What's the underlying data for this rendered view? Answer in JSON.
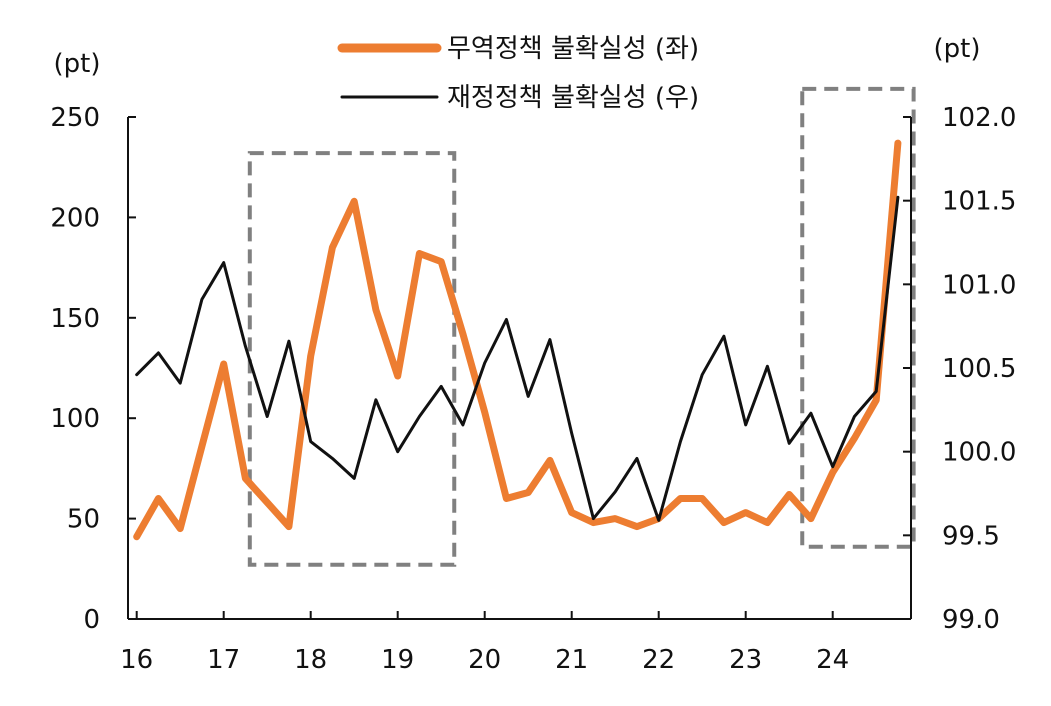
{
  "chart_data": {
    "type": "line",
    "left_axis": {
      "unit": "(pt)",
      "ylim": [
        0,
        250
      ],
      "ticks": [
        0,
        50,
        100,
        150,
        200,
        250
      ]
    },
    "right_axis": {
      "unit": "(pt)",
      "ylim": [
        99.0,
        102.0
      ],
      "ticks": [
        "99.0",
        "99.5",
        "100.0",
        "100.5",
        "101.0",
        "101.5",
        "102.0"
      ]
    },
    "x_tick_labels": [
      "16",
      "17",
      "18",
      "19",
      "20",
      "21",
      "22",
      "23",
      "24"
    ],
    "x_ticks": [
      2016,
      2017,
      2018,
      2019,
      2020,
      2021,
      2022,
      2023,
      2024
    ],
    "xlim": [
      2015.9,
      2024.9
    ],
    "series": [
      {
        "name": "무역정책 불확실성 (좌)",
        "axis": "left",
        "color": "#ED7D31",
        "x": [
          2016.0,
          2016.25,
          2016.5,
          2016.75,
          2017.0,
          2017.25,
          2017.5,
          2017.75,
          2018.0,
          2018.25,
          2018.5,
          2018.75,
          2019.0,
          2019.25,
          2019.5,
          2019.75,
          2020.0,
          2020.25,
          2020.5,
          2020.75,
          2021.0,
          2021.25,
          2021.5,
          2021.75,
          2022.0,
          2022.25,
          2022.5,
          2022.75,
          2023.0,
          2023.25,
          2023.5,
          2023.75,
          2024.0,
          2024.25,
          2024.5,
          2024.75
        ],
        "values": [
          41,
          60,
          45,
          86,
          127,
          70,
          58,
          46,
          131,
          185,
          208,
          154,
          121,
          182,
          178,
          142,
          103,
          60,
          63,
          79,
          53,
          48,
          50,
          46,
          50,
          60,
          60,
          48,
          53,
          48,
          62,
          50,
          73,
          90,
          109,
          237
        ]
      },
      {
        "name": "재정정책 불확실성 (우)",
        "axis": "right",
        "color": "#111111",
        "x": [
          2016.0,
          2016.25,
          2016.5,
          2016.75,
          2017.0,
          2017.25,
          2017.5,
          2017.75,
          2018.0,
          2018.25,
          2018.5,
          2018.75,
          2019.0,
          2019.25,
          2019.5,
          2019.75,
          2020.0,
          2020.25,
          2020.5,
          2020.75,
          2021.0,
          2021.25,
          2021.5,
          2021.75,
          2022.0,
          2022.25,
          2022.5,
          2022.75,
          2023.0,
          2023.25,
          2023.5,
          2023.75,
          2024.0,
          2024.25,
          2024.5,
          2024.75
        ],
        "values": [
          100.46,
          100.59,
          100.41,
          100.91,
          101.13,
          100.63,
          100.21,
          100.66,
          100.06,
          99.96,
          99.84,
          100.31,
          100.0,
          100.21,
          100.39,
          100.16,
          100.53,
          100.79,
          100.33,
          100.67,
          100.11,
          99.6,
          99.76,
          99.96,
          99.59,
          100.06,
          100.46,
          100.69,
          100.16,
          100.51,
          100.05,
          100.23,
          99.91,
          100.21,
          100.36,
          101.52
        ]
      }
    ],
    "highlight_boxes": [
      {
        "x_start": 2017.3,
        "x_end": 2019.65,
        "y_start_left": 27,
        "y_end_left": 232
      },
      {
        "x_start": 2023.65,
        "x_end": 2024.93,
        "y_start_left": 36,
        "y_end_left": 264
      }
    ]
  }
}
